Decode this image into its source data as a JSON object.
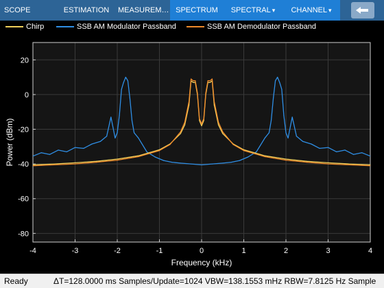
{
  "toolstrip": {
    "tabs": [
      {
        "label": "SCOPE"
      },
      {
        "label": "ESTIMATION"
      },
      {
        "label": "MEASUREM…"
      },
      {
        "label": "SPECTRUM"
      },
      {
        "label": "SPECTRAL"
      },
      {
        "label": "CHANNEL"
      }
    ],
    "spectral_ellipsis": "▾",
    "channel_ellipsis": "▾",
    "collapse_icon": "collapse-left-icon",
    "colors": {
      "strip": "#2d6496",
      "active_group": "#1f7fd6",
      "collapse_button": "#8aa9c8"
    }
  },
  "legend": {
    "items": [
      {
        "label": "Chirp",
        "color": "#f2d15c"
      },
      {
        "label": "SSB AM Modulator Passband",
        "color": "#2f8fe6"
      },
      {
        "label": "SSB AM Demodulator Passband",
        "color": "#f08a2a"
      }
    ]
  },
  "chart_data": {
    "type": "line",
    "xlabel": "Frequency (kHz)",
    "ylabel": "Power (dBm)",
    "xlim": [
      -4,
      4
    ],
    "ylim": [
      -85,
      30
    ],
    "xticks": [
      -4,
      -3,
      -2,
      -1,
      0,
      1,
      2,
      3,
      4
    ],
    "yticks": [
      20,
      0,
      -20,
      -40,
      -60,
      -80
    ],
    "grid": true,
    "legend_position": "top",
    "series": [
      {
        "name": "Chirp",
        "color": "#f2d15c",
        "x": [
          -4,
          -3.5,
          -3,
          -2.5,
          -2,
          -1.5,
          -1,
          -0.75,
          -0.5,
          -0.4,
          -0.3,
          -0.25,
          -0.2,
          -0.15,
          -0.1,
          -0.05,
          0,
          0.05,
          0.1,
          0.15,
          0.2,
          0.25,
          0.3,
          0.4,
          0.5,
          0.75,
          1,
          1.5,
          2,
          2.5,
          3,
          3.5,
          4
        ],
        "y": [
          -40.5,
          -40,
          -39.3,
          -38.5,
          -37.2,
          -35.3,
          -31.8,
          -28.5,
          -22.5,
          -17.5,
          -6,
          8,
          7,
          7,
          0,
          -15,
          -18,
          -15,
          0,
          7,
          7,
          8,
          -6,
          -17.5,
          -22.5,
          -28.5,
          -31.8,
          -35.3,
          -37.2,
          -38.5,
          -39.3,
          -40,
          -40.5
        ]
      },
      {
        "name": "SSB AM Modulator Passband",
        "color": "#2f8fe6",
        "x": [
          -4,
          -3.8,
          -3.6,
          -3.4,
          -3.2,
          -3,
          -2.8,
          -2.6,
          -2.4,
          -2.25,
          -2.15,
          -2.05,
          -2,
          -1.95,
          -1.9,
          -1.85,
          -1.8,
          -1.75,
          -1.7,
          -1.65,
          -1.6,
          -1.5,
          -1.3,
          -1.1,
          -0.9,
          -0.7,
          -0.5,
          -0.25,
          0,
          0.25,
          0.5,
          0.7,
          0.9,
          1.1,
          1.3,
          1.5,
          1.6,
          1.65,
          1.7,
          1.75,
          1.8,
          1.85,
          1.9,
          1.95,
          2,
          2.05,
          2.15,
          2.25,
          2.4,
          2.6,
          2.8,
          3,
          3.2,
          3.4,
          3.6,
          3.8,
          4
        ],
        "y": [
          -35.5,
          -33.5,
          -34.5,
          -32,
          -33,
          -30.5,
          -31,
          -28.5,
          -27,
          -24,
          -13,
          -25,
          -22,
          -12,
          3,
          7,
          10,
          8,
          -2,
          -15,
          -22,
          -25,
          -33,
          -36,
          -38,
          -39,
          -39.5,
          -40,
          -40.5,
          -40,
          -39.5,
          -39,
          -38,
          -36,
          -33,
          -25,
          -22,
          -15,
          -2,
          8,
          10,
          7,
          3,
          -12,
          -22,
          -25,
          -13,
          -24,
          -27,
          -28.5,
          -31,
          -30.5,
          -33,
          -32,
          -34.5,
          -33.5,
          -35.5
        ]
      },
      {
        "name": "SSB AM Demodulator Passband",
        "color": "#f08a2a",
        "x": [
          -4,
          -3.5,
          -3,
          -2.5,
          -2,
          -1.5,
          -1,
          -0.75,
          -0.5,
          -0.4,
          -0.3,
          -0.25,
          -0.2,
          -0.15,
          -0.1,
          -0.05,
          0,
          0.05,
          0.1,
          0.15,
          0.2,
          0.25,
          0.3,
          0.4,
          0.5,
          0.75,
          1,
          1.5,
          2,
          2.5,
          3,
          3.5,
          4
        ],
        "y": [
          -41,
          -40.5,
          -40,
          -39,
          -37.8,
          -35.8,
          -32.3,
          -28.8,
          -21.5,
          -16,
          -4,
          9,
          8,
          8,
          1,
          -14,
          -17,
          -14,
          1,
          8,
          8,
          9,
          -4,
          -16,
          -21.5,
          -28.8,
          -32.3,
          -35.8,
          -37.8,
          -39,
          -40,
          -40.5,
          -41
        ]
      }
    ]
  },
  "plot": {
    "background": "#151515",
    "grid_color": "#3a3a3a",
    "axis_color": "#cfcfcf"
  },
  "status": {
    "ready": "Ready",
    "info": "ΔT=128.0000 ms  Samples/Update=1024  VBW=138.1553 mHz  RBW=7.8125 Hz  Sample"
  }
}
